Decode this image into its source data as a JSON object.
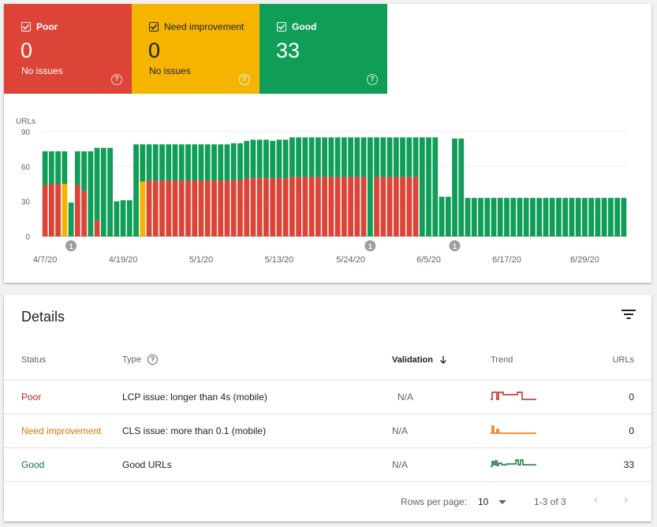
{
  "tiles": {
    "poor": {
      "label": "Poor",
      "count": "0",
      "sub": "No issues"
    },
    "need_improvement": {
      "label": "Need improvement",
      "count": "0",
      "sub": "No issues"
    },
    "good": {
      "label": "Good",
      "count": "33",
      "sub": ""
    }
  },
  "colors": {
    "poor": "#db4437",
    "need_improvement": "#f4b400",
    "good": "#0f9d58"
  },
  "chart_data": {
    "type": "bar",
    "stacked": true,
    "ylabel": "URLs",
    "ylim": [
      0,
      90
    ],
    "yticks": [
      0,
      30,
      60,
      90
    ],
    "xtick_labels": [
      "4/7/20",
      "4/19/20",
      "5/1/20",
      "5/13/20",
      "5/24/20",
      "6/5/20",
      "6/17/20",
      "6/29/20"
    ],
    "xtick_indices": [
      0,
      12,
      24,
      36,
      47,
      59,
      71,
      83
    ],
    "annotations": [
      {
        "index": 4,
        "label": "1"
      },
      {
        "index": 50,
        "label": "1"
      },
      {
        "index": 63,
        "label": "1"
      }
    ],
    "series": [
      {
        "name": "Poor",
        "values": [
          44,
          45,
          45,
          0,
          0,
          44,
          39,
          0,
          14,
          0,
          0,
          0,
          0,
          0,
          0,
          0,
          48,
          48,
          48,
          48,
          48,
          48,
          48,
          48,
          48,
          48,
          48,
          48,
          48,
          48,
          48,
          50,
          50,
          50,
          50,
          50,
          50,
          50,
          51,
          51,
          51,
          51,
          51,
          51,
          51,
          51,
          51,
          51,
          51,
          51,
          0,
          51,
          51,
          51,
          51,
          51,
          51,
          51,
          0,
          0,
          0,
          0,
          0,
          0,
          0,
          0,
          0,
          0,
          0,
          0,
          0,
          0,
          0,
          0,
          0,
          0,
          0,
          0,
          0,
          0,
          0,
          0,
          0,
          0,
          0,
          0,
          0,
          0,
          0,
          0
        ]
      },
      {
        "name": "Need improvement",
        "values": [
          0,
          0,
          0,
          45,
          0,
          0,
          0,
          0,
          0,
          0,
          0,
          0,
          0,
          0,
          0,
          47,
          0,
          0,
          0,
          0,
          0,
          0,
          0,
          0,
          0,
          0,
          0,
          0,
          0,
          0,
          0,
          0,
          0,
          0,
          0,
          0,
          0,
          0,
          0,
          0,
          0,
          0,
          0,
          0,
          0,
          0,
          0,
          0,
          0,
          0,
          0,
          0,
          0,
          0,
          0,
          0,
          0,
          0,
          0,
          0,
          0,
          0,
          0,
          0,
          0,
          0,
          0,
          0,
          0,
          0,
          0,
          0,
          0,
          0,
          0,
          0,
          0,
          0,
          0,
          0,
          0,
          0,
          0,
          0,
          0,
          0,
          0,
          0,
          0,
          0
        ]
      },
      {
        "name": "Good",
        "values": [
          29,
          28,
          28,
          28,
          29,
          29,
          34,
          73,
          62,
          76,
          76,
          30,
          31,
          31,
          79,
          32,
          31,
          31,
          31,
          31,
          31,
          31,
          31,
          31,
          31,
          31,
          31,
          31,
          31,
          32,
          32,
          32,
          33,
          33,
          33,
          32,
          33,
          33,
          34,
          34,
          34,
          34,
          34,
          34,
          34,
          34,
          34,
          34,
          34,
          34,
          85,
          34,
          34,
          34,
          34,
          34,
          34,
          34,
          85,
          85,
          85,
          34,
          34,
          84,
          84,
          33,
          33,
          33,
          33,
          33,
          33,
          33,
          33,
          33,
          33,
          33,
          33,
          33,
          33,
          33,
          33,
          33,
          33,
          33,
          33,
          33,
          33,
          33,
          33,
          33
        ]
      }
    ],
    "gaps": [
      4,
      7,
      9,
      11,
      12,
      13,
      14,
      64,
      66,
      67,
      68,
      69
    ]
  },
  "details": {
    "title": "Details",
    "columns": {
      "status": "Status",
      "type": "Type",
      "validation": "Validation",
      "trend": "Trend",
      "urls": "URLs"
    },
    "rows": [
      {
        "status": "Poor",
        "type": "LCP issue: longer than 4s (mobile)",
        "validation": "N/A",
        "urls": "0",
        "trend_color": "#c5221f"
      },
      {
        "status": "Need improvement",
        "type": "CLS issue: more than 0.1 (mobile)",
        "validation": "N/A",
        "urls": "0",
        "trend_color": "#e37400"
      },
      {
        "status": "Good",
        "type": "Good URLs",
        "validation": "N/A",
        "urls": "33",
        "trend_color": "#137333"
      }
    ],
    "pager": {
      "rows_per_page_label": "Rows per page:",
      "rows_per_page": "10",
      "range": "1-3 of 3"
    }
  }
}
